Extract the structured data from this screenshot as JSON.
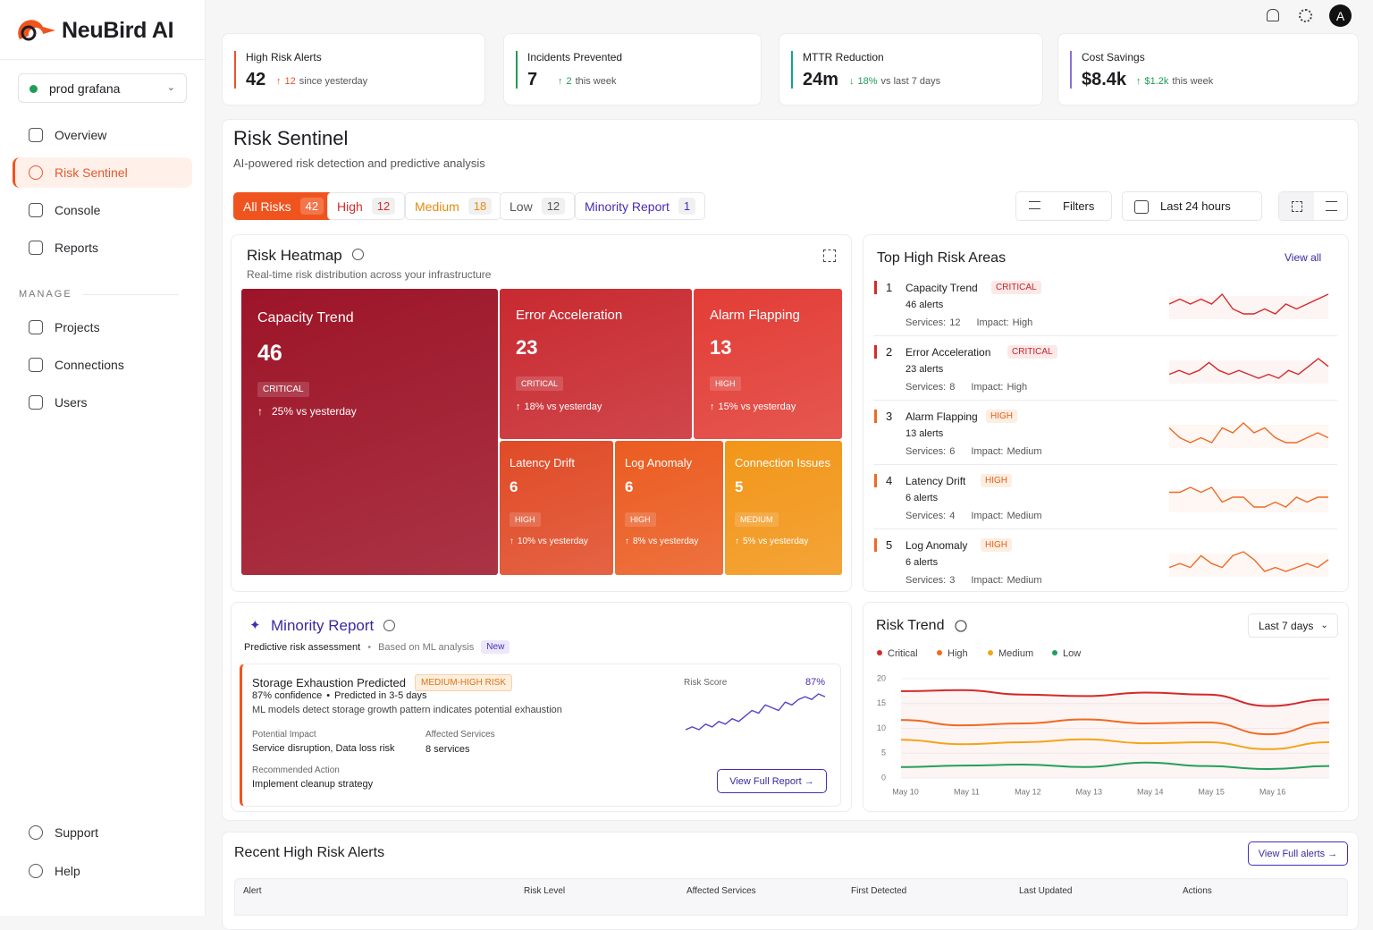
{
  "brand": "NeuBird AI",
  "sidebar": {
    "env": "prod grafana",
    "nav": [
      "Overview",
      "Risk Sentinel",
      "Console",
      "Reports"
    ],
    "section": "MANAGE",
    "manage": [
      "Projects",
      "Connections",
      "Users"
    ],
    "footer": [
      "Support",
      "Help"
    ]
  },
  "avatar": "A",
  "kpis": [
    {
      "label": "High Risk Alerts",
      "value": "42",
      "change": "12",
      "note": "since yesterday",
      "color": "#e8542c"
    },
    {
      "label": "Incidents Prevented",
      "value": "7",
      "change": "2",
      "note": "this week",
      "color": "#1f9d55"
    },
    {
      "label": "MTTR Reduction",
      "value": "24m",
      "change": "18%",
      "note": "vs last 7 days",
      "color": "#14a38b"
    },
    {
      "label": "Cost Savings",
      "value": "$8.4k",
      "change": "$1.2k",
      "note": "this week",
      "color": "#8b6fd6"
    }
  ],
  "header": {
    "title": "Risk Sentinel",
    "subtitle": "AI-powered risk detection and predictive analysis"
  },
  "tabs": [
    {
      "label": "All Risks",
      "count": "42",
      "color": "#ffffff",
      "bg": "#f0541e"
    },
    {
      "label": "High",
      "count": "12",
      "color": "#d62b2b",
      "bg": "#ffffff"
    },
    {
      "label": "Medium",
      "count": "18",
      "color": "#e98a10",
      "bg": "#ffffff"
    },
    {
      "label": "Low",
      "count": "12",
      "color": "#555555",
      "bg": "#ffffff"
    },
    {
      "label": "Minority Report",
      "count": "1",
      "color": "#4b2bb5",
      "bg": "#ffffff"
    }
  ],
  "filters": "Filters",
  "range": "Last 24 hours",
  "heatmap": {
    "title": "Risk Heatmap",
    "subtitle": "Real-time risk distribution across your infrastructure",
    "tiles": [
      {
        "name": "Capacity Trend",
        "value": "46",
        "level": "CRITICAL",
        "change": "25% vs yesterday",
        "color": "#9d1428"
      },
      {
        "name": "Error Acceleration",
        "value": "23",
        "level": "CRITICAL",
        "change": "18% vs yesterday",
        "color": "#c82a30"
      },
      {
        "name": "Alarm Flapping",
        "value": "13",
        "level": "HIGH",
        "change": "15% vs yesterday",
        "color": "#e23d36"
      },
      {
        "name": "Latency Drift",
        "value": "6",
        "level": "HIGH",
        "change": "10% vs yesterday",
        "color": "#e04b27"
      },
      {
        "name": "Log Anomaly",
        "value": "6",
        "level": "HIGH",
        "change": "8% vs yesterday",
        "color": "#eb5c21"
      },
      {
        "name": "Connection Issues",
        "value": "5",
        "level": "MEDIUM",
        "change": "5% vs yesterday",
        "color": "#f29619"
      }
    ]
  },
  "top_areas": {
    "title": "Top High Risk Areas",
    "view_all": "View all",
    "services_label": "Services:",
    "impact_label": "Impact:",
    "items": [
      {
        "rank": "1",
        "name": "Capacity Trend",
        "level": "CRITICAL",
        "alerts": "46 alerts",
        "services": "12",
        "impact": "High",
        "color": "#d42a2a",
        "spark": [
          5,
          6,
          5,
          6,
          5,
          7,
          4,
          3,
          3,
          4,
          3,
          5,
          4,
          5,
          6,
          7
        ]
      },
      {
        "rank": "2",
        "name": "Error Acceleration",
        "level": "CRITICAL",
        "alerts": "23 alerts",
        "services": "8",
        "impact": "High",
        "color": "#d42a2a",
        "spark": [
          4,
          5,
          4,
          5,
          7,
          5,
          4,
          5,
          4,
          3,
          4,
          3,
          5,
          4,
          6,
          8,
          6
        ]
      },
      {
        "rank": "3",
        "name": "Alarm Flapping",
        "level": "HIGH",
        "alerts": "13 alerts",
        "services": "6",
        "impact": "Medium",
        "color": "#ee6a24",
        "spark": [
          6,
          4,
          3,
          4,
          3,
          6,
          5,
          7,
          5,
          6,
          4,
          3,
          3,
          4,
          5,
          4
        ]
      },
      {
        "rank": "4",
        "name": "Latency Drift",
        "level": "HIGH",
        "alerts": "6 alerts",
        "services": "4",
        "impact": "Medium",
        "color": "#ee6a24",
        "spark": [
          6,
          6,
          7,
          6,
          7,
          4,
          5,
          5,
          3,
          3,
          4,
          3,
          5,
          4,
          5,
          5
        ]
      },
      {
        "rank": "5",
        "name": "Log Anomaly",
        "level": "HIGH",
        "alerts": "6 alerts",
        "services": "3",
        "impact": "Medium",
        "color": "#ee6a24",
        "spark": [
          4,
          5,
          4,
          7,
          5,
          4,
          7,
          8,
          6,
          3,
          4,
          3,
          4,
          5,
          4,
          6
        ]
      }
    ]
  },
  "minority": {
    "title": "Minority Report",
    "subtitle": "Predictive risk assessment",
    "basis": "Based on ML analysis",
    "badge": "New",
    "card": {
      "title": "Storage Exhaustion Predicted",
      "badge": "MEDIUM-HIGH RISK",
      "confidence": "87% confidence",
      "predicted": "Predicted in 3-5 days",
      "description": "ML models detect storage growth pattern indicates potential exhaustion",
      "impact_label": "Potential Impact",
      "impact": "Service disruption, Data loss risk",
      "services_label": "Affected Services",
      "services": "8 services",
      "action_label": "Recommended Action",
      "action": "Implement cleanup strategy",
      "score_label": "Risk Score",
      "score": "87%",
      "score_spark": [
        3,
        4,
        3,
        5,
        4,
        6,
        5,
        7,
        6,
        8,
        10,
        9,
        12,
        11,
        10,
        13,
        12,
        14,
        15,
        14,
        16,
        15
      ],
      "button": "View Full Report"
    }
  },
  "chart_data": {
    "type": "line",
    "title": "Risk Trend",
    "range": "Last 7 days",
    "categories": [
      "May 10",
      "May 11",
      "May 12",
      "May 13",
      "May 14",
      "May 15",
      "May 16",
      null
    ],
    "series": [
      {
        "name": "Critical",
        "color": "#d42a2a",
        "values": [
          17.5,
          17.7,
          16.8,
          16.5,
          17.2,
          16.8,
          14.5,
          15.8
        ]
      },
      {
        "name": "High",
        "color": "#f06a20",
        "values": [
          11.7,
          10.6,
          11.0,
          11.8,
          11.0,
          11.2,
          8.8,
          11.2
        ]
      },
      {
        "name": "Medium",
        "color": "#f2a51a",
        "values": [
          7.7,
          6.8,
          7.2,
          7.8,
          7.0,
          7.2,
          5.8,
          7.2
        ]
      },
      {
        "name": "Low",
        "color": "#22a05a",
        "values": [
          2.2,
          2.5,
          2.7,
          2.2,
          3.1,
          2.4,
          1.8,
          2.4
        ]
      }
    ],
    "ylim": [
      0,
      20
    ],
    "yticks": [
      0,
      5,
      10,
      15,
      20
    ],
    "legend": "top-left"
  },
  "alerts": {
    "title": "Recent High Risk Alerts",
    "button": "View Full alerts",
    "columns": [
      "Alert",
      "Risk Level",
      "Affected Services",
      "First Detected",
      "Last Updated",
      "Actions"
    ]
  }
}
